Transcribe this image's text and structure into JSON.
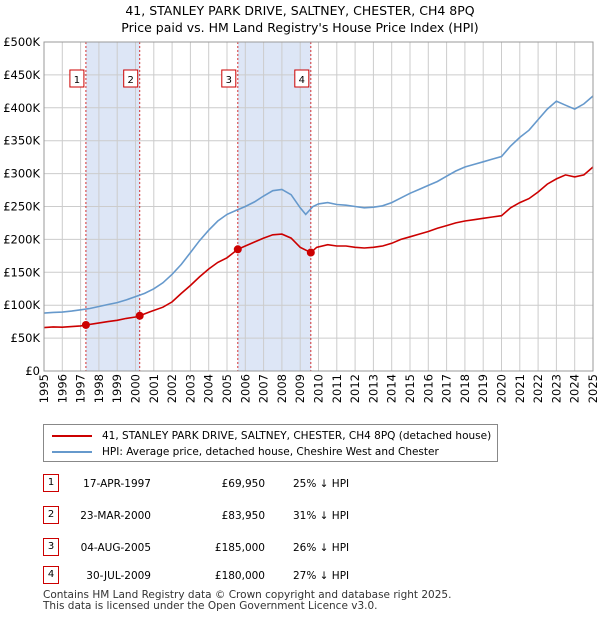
{
  "title_line1": "41, STANLEY PARK DRIVE, SALTNEY, CHESTER, CH4 8PQ",
  "title_line2": "Price paid vs. HM Land Registry's House Price Index (HPI)",
  "colors": {
    "property": "#cc0000",
    "hpi": "#6699cc",
    "shade": "#dde6f6",
    "grid": "#cccccc"
  },
  "chart_data": {
    "type": "line",
    "title": "Price paid vs. HM Land Registry's House Price Index (HPI)",
    "xlabel": "",
    "ylabel": "",
    "xlim": [
      1995,
      2025
    ],
    "ylim": [
      0,
      500000
    ],
    "x_ticks": [
      "1995",
      "1996",
      "1997",
      "1998",
      "1999",
      "2000",
      "2001",
      "2002",
      "2003",
      "2004",
      "2005",
      "2006",
      "2007",
      "2008",
      "2009",
      "2010",
      "2011",
      "2012",
      "2013",
      "2014",
      "2015",
      "2016",
      "2017",
      "2018",
      "2019",
      "2020",
      "2021",
      "2022",
      "2023",
      "2024",
      "2025"
    ],
    "y_ticks": [
      {
        "value": 0,
        "label": "£0"
      },
      {
        "value": 50000,
        "label": "£50K"
      },
      {
        "value": 100000,
        "label": "£100K"
      },
      {
        "value": 150000,
        "label": "£150K"
      },
      {
        "value": 200000,
        "label": "£200K"
      },
      {
        "value": 250000,
        "label": "£250K"
      },
      {
        "value": 300000,
        "label": "£300K"
      },
      {
        "value": 350000,
        "label": "£350K"
      },
      {
        "value": 400000,
        "label": "£400K"
      },
      {
        "value": 450000,
        "label": "£450K"
      },
      {
        "value": 500000,
        "label": "£500K"
      }
    ],
    "grid": true,
    "legend_position": "below",
    "shaded_ranges": [
      [
        1997.29,
        2000.23
      ],
      [
        2005.59,
        2009.58
      ]
    ],
    "series": [
      {
        "name": "41, STANLEY PARK DRIVE, SALTNEY, CHESTER, CH4 8PQ (detached house)",
        "color": "#cc0000",
        "points": [
          [
            1995.0,
            66000
          ],
          [
            1995.5,
            67000
          ],
          [
            1996.0,
            66500
          ],
          [
            1996.5,
            67500
          ],
          [
            1997.0,
            68500
          ],
          [
            1997.29,
            69950
          ],
          [
            1997.8,
            72000
          ],
          [
            1998.5,
            75000
          ],
          [
            1999.0,
            77000
          ],
          [
            1999.5,
            80000
          ],
          [
            2000.0,
            82000
          ],
          [
            2000.23,
            83950
          ],
          [
            2000.8,
            90000
          ],
          [
            2001.5,
            97000
          ],
          [
            2002.0,
            105000
          ],
          [
            2002.5,
            118000
          ],
          [
            2003.0,
            130000
          ],
          [
            2003.5,
            143000
          ],
          [
            2004.0,
            155000
          ],
          [
            2004.5,
            165000
          ],
          [
            2005.0,
            172000
          ],
          [
            2005.59,
            185000
          ],
          [
            2006.0,
            190000
          ],
          [
            2006.5,
            196000
          ],
          [
            2007.0,
            202000
          ],
          [
            2007.5,
            207000
          ],
          [
            2008.0,
            208000
          ],
          [
            2008.5,
            202000
          ],
          [
            2009.0,
            188000
          ],
          [
            2009.58,
            180000
          ],
          [
            2009.9,
            188000
          ],
          [
            2010.5,
            192000
          ],
          [
            2011.0,
            190000
          ],
          [
            2011.5,
            190000
          ],
          [
            2012.0,
            188000
          ],
          [
            2012.5,
            187000
          ],
          [
            2013.0,
            188000
          ],
          [
            2013.5,
            190000
          ],
          [
            2014.0,
            194000
          ],
          [
            2014.5,
            200000
          ],
          [
            2015.0,
            204000
          ],
          [
            2015.5,
            208000
          ],
          [
            2016.0,
            212000
          ],
          [
            2016.5,
            217000
          ],
          [
            2017.0,
            221000
          ],
          [
            2017.5,
            225000
          ],
          [
            2018.0,
            228000
          ],
          [
            2018.5,
            230000
          ],
          [
            2019.0,
            232000
          ],
          [
            2019.5,
            234000
          ],
          [
            2020.0,
            236000
          ],
          [
            2020.5,
            248000
          ],
          [
            2021.0,
            256000
          ],
          [
            2021.5,
            262000
          ],
          [
            2022.0,
            272000
          ],
          [
            2022.5,
            284000
          ],
          [
            2023.0,
            292000
          ],
          [
            2023.5,
            298000
          ],
          [
            2024.0,
            295000
          ],
          [
            2024.5,
            298000
          ],
          [
            2025.0,
            310000
          ]
        ]
      },
      {
        "name": "HPI: Average price, detached house, Cheshire West and Chester",
        "color": "#6699cc",
        "points": [
          [
            1995.0,
            88000
          ],
          [
            1995.5,
            89000
          ],
          [
            1996.0,
            89500
          ],
          [
            1996.5,
            91000
          ],
          [
            1997.0,
            93000
          ],
          [
            1997.5,
            95000
          ],
          [
            1998.0,
            98000
          ],
          [
            1998.5,
            101000
          ],
          [
            1999.0,
            104000
          ],
          [
            1999.5,
            108000
          ],
          [
            2000.0,
            113000
          ],
          [
            2000.5,
            118000
          ],
          [
            2001.0,
            125000
          ],
          [
            2001.5,
            134000
          ],
          [
            2002.0,
            147000
          ],
          [
            2002.5,
            162000
          ],
          [
            2003.0,
            180000
          ],
          [
            2003.5,
            198000
          ],
          [
            2004.0,
            214000
          ],
          [
            2004.5,
            228000
          ],
          [
            2005.0,
            238000
          ],
          [
            2005.5,
            244000
          ],
          [
            2006.0,
            250000
          ],
          [
            2006.5,
            257000
          ],
          [
            2007.0,
            266000
          ],
          [
            2007.5,
            274000
          ],
          [
            2008.0,
            276000
          ],
          [
            2008.5,
            268000
          ],
          [
            2009.0,
            248000
          ],
          [
            2009.3,
            238000
          ],
          [
            2009.7,
            250000
          ],
          [
            2010.0,
            254000
          ],
          [
            2010.5,
            256000
          ],
          [
            2011.0,
            253000
          ],
          [
            2011.5,
            252000
          ],
          [
            2012.0,
            250000
          ],
          [
            2012.5,
            248000
          ],
          [
            2013.0,
            249000
          ],
          [
            2013.5,
            251000
          ],
          [
            2014.0,
            256000
          ],
          [
            2014.5,
            263000
          ],
          [
            2015.0,
            270000
          ],
          [
            2015.5,
            276000
          ],
          [
            2016.0,
            282000
          ],
          [
            2016.5,
            288000
          ],
          [
            2017.0,
            296000
          ],
          [
            2017.5,
            304000
          ],
          [
            2018.0,
            310000
          ],
          [
            2018.5,
            314000
          ],
          [
            2019.0,
            318000
          ],
          [
            2019.5,
            322000
          ],
          [
            2020.0,
            326000
          ],
          [
            2020.5,
            342000
          ],
          [
            2021.0,
            355000
          ],
          [
            2021.5,
            366000
          ],
          [
            2022.0,
            382000
          ],
          [
            2022.5,
            398000
          ],
          [
            2023.0,
            410000
          ],
          [
            2023.5,
            404000
          ],
          [
            2024.0,
            398000
          ],
          [
            2024.5,
            406000
          ],
          [
            2025.0,
            418000
          ]
        ]
      }
    ],
    "sale_markers": [
      {
        "label": "1",
        "x": 1997.29,
        "value": 69950
      },
      {
        "label": "2",
        "x": 2000.23,
        "value": 83950
      },
      {
        "label": "3",
        "x": 2005.59,
        "value": 185000
      },
      {
        "label": "4",
        "x": 2009.58,
        "value": 180000
      }
    ]
  },
  "legend": {
    "property_label": "41, STANLEY PARK DRIVE, SALTNEY, CHESTER, CH4 8PQ (detached house)",
    "hpi_label": "HPI: Average price, detached house, Cheshire West and Chester"
  },
  "sales": [
    {
      "num": "1",
      "date": "17-APR-1997",
      "price": "£69,950",
      "hpi": "25% ↓ HPI"
    },
    {
      "num": "2",
      "date": "23-MAR-2000",
      "price": "£83,950",
      "hpi": "31% ↓ HPI"
    },
    {
      "num": "3",
      "date": "04-AUG-2005",
      "price": "£185,000",
      "hpi": "26% ↓ HPI"
    },
    {
      "num": "4",
      "date": "30-JUL-2009",
      "price": "£180,000",
      "hpi": "27% ↓ HPI"
    }
  ],
  "footer_line1": "Contains HM Land Registry data © Crown copyright and database right 2025.",
  "footer_line2": "This data is licensed under the Open Government Licence v3.0."
}
